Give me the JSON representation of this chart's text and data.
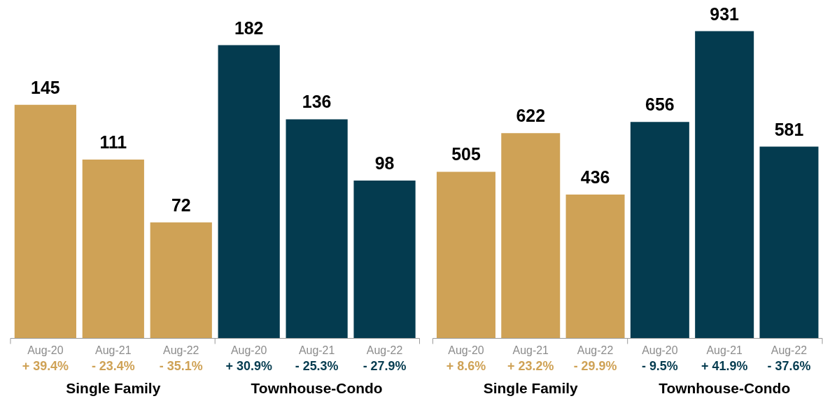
{
  "chart_data": [
    {
      "type": "bar",
      "categories": [
        "Aug-20",
        "Aug-21",
        "Aug-22",
        "Aug-20",
        "Aug-21",
        "Aug-22"
      ],
      "series": [
        {
          "name": "Single Family",
          "color": "#cfa256",
          "values": [
            145,
            111,
            72,
            null,
            null,
            null
          ]
        },
        {
          "name": "Townhouse-Condo",
          "color": "#043b4f",
          "values": [
            null,
            null,
            null,
            182,
            136,
            98
          ]
        }
      ],
      "data_labels": true,
      "annotations": [
        "+ 39.4%",
        "- 23.4%",
        "- 35.1%",
        "+ 30.9%",
        "- 25.3%",
        "- 27.9%"
      ]
    },
    {
      "type": "bar",
      "categories": [
        "Aug-20",
        "Aug-21",
        "Aug-22",
        "Aug-20",
        "Aug-21",
        "Aug-22"
      ],
      "series": [
        {
          "name": "Single Family",
          "color": "#cfa256",
          "values": [
            505,
            622,
            436,
            null,
            null,
            null
          ]
        },
        {
          "name": "Townhouse-Condo",
          "color": "#043b4f",
          "values": [
            null,
            null,
            null,
            656,
            931,
            581
          ]
        }
      ],
      "data_labels": true,
      "annotations": [
        "+ 8.6%",
        "+ 23.2%",
        "- 29.9%",
        "- 9.5%",
        "+ 41.9%",
        "- 37.6%"
      ]
    }
  ]
}
